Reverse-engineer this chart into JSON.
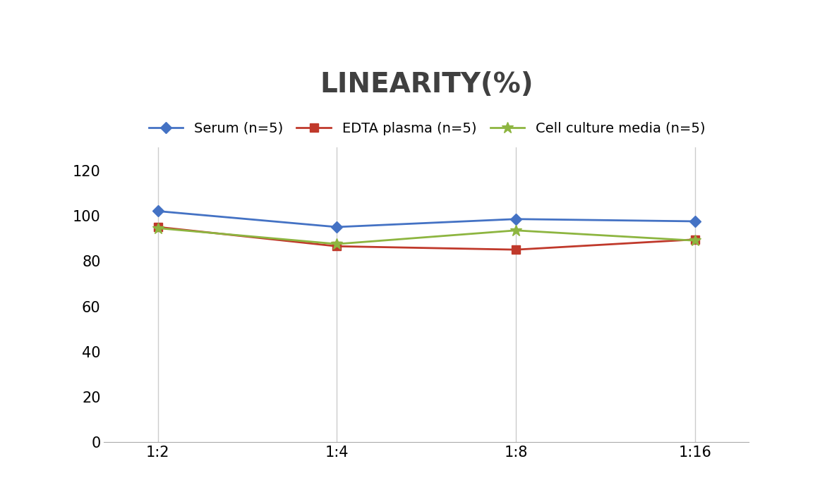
{
  "title": "LINEARITY(%)",
  "title_fontsize": 28,
  "title_fontweight": "bold",
  "title_color": "#404040",
  "x_labels": [
    "1:2",
    "1:4",
    "1:8",
    "1:16"
  ],
  "x_positions": [
    0,
    1,
    2,
    3
  ],
  "series": [
    {
      "label": "Serum (n=5)",
      "values": [
        102,
        95,
        98.5,
        97.5
      ],
      "color": "#4472C4",
      "marker": "D",
      "markersize": 8,
      "linewidth": 2
    },
    {
      "label": "EDTA plasma (n=5)",
      "values": [
        95,
        86.5,
        85,
        89.5
      ],
      "color": "#C0392B",
      "marker": "s",
      "markersize": 8,
      "linewidth": 2
    },
    {
      "label": "Cell culture media (n=5)",
      "values": [
        94.5,
        87.5,
        93.5,
        89
      ],
      "color": "#8DB540",
      "marker": "*",
      "markersize": 12,
      "linewidth": 2
    }
  ],
  "ylim": [
    0,
    130
  ],
  "yticks": [
    0,
    20,
    40,
    60,
    80,
    100,
    120
  ],
  "legend_ncol": 3,
  "legend_fontsize": 14,
  "tick_fontsize": 15,
  "grid_color": "#CCCCCC",
  "background_color": "#FFFFFF"
}
